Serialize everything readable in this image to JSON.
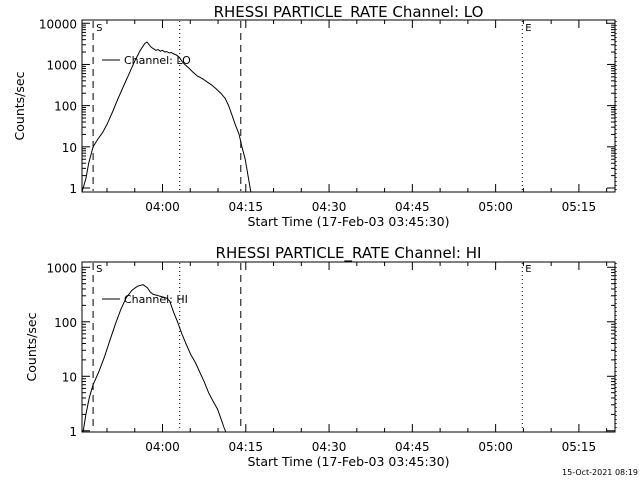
{
  "footer": {
    "timestamp": "15-Oct-2021 08:19"
  },
  "chart_data": [
    {
      "type": "line",
      "title": "RHESSI PARTICLE_RATE Channel: LO",
      "xlabel": "Start Time (17-Feb-03 03:45:30)",
      "ylabel": "Counts/sec",
      "xlim_min": [
        0,
        96
      ],
      "x_tick_labels": [
        "04:00",
        "04:15",
        "04:30",
        "04:45",
        "05:00",
        "05:15"
      ],
      "x_tick_values_min": [
        14.5,
        29.5,
        44.5,
        59.5,
        74.5,
        89.5
      ],
      "y_scale": "log",
      "ylim": [
        0.8,
        12000
      ],
      "y_tick_labels": [
        "1",
        "10",
        "100",
        "1000",
        "10000"
      ],
      "y_tick_values": [
        1,
        10,
        100,
        1000,
        10000
      ],
      "legend": {
        "label": "Channel: LO",
        "placement": "top-left"
      },
      "markers": [
        {
          "label": "S",
          "x_min": 2.0,
          "style": "dashed"
        },
        {
          "label": "",
          "x_min": 17.6,
          "style": "dotted"
        },
        {
          "label": "",
          "x_min": 28.6,
          "style": "dashed"
        },
        {
          "label": "E",
          "x_min": 79.3,
          "style": "dotted"
        },
        {
          "label": "",
          "x_min": 96.2,
          "style": "dotted"
        }
      ],
      "series": [
        {
          "name": "Channel: LO",
          "x_min": [
            0.0,
            0.7,
            1.2,
            2.0,
            2.8,
            3.7,
            4.5,
            5.5,
            6.5,
            7.5,
            8.5,
            9.5,
            10.5,
            11.3,
            11.7,
            12.1,
            12.5,
            12.9,
            13.3,
            13.7,
            14.1,
            14.5,
            14.9,
            15.3,
            15.7,
            16.1,
            16.5,
            17.0,
            17.5,
            18.0,
            18.5,
            19.3,
            20.0,
            20.8,
            21.7,
            22.5,
            23.3,
            24.1,
            25.0,
            25.8,
            26.4,
            27.0,
            27.6,
            28.3,
            28.8,
            29.4,
            29.9,
            30.4
          ],
          "y": [
            0.8,
            1.7,
            4,
            10,
            15,
            22,
            35,
            70,
            150,
            300,
            600,
            1200,
            2200,
            3200,
            3500,
            3000,
            2600,
            2400,
            2200,
            2300,
            2100,
            2200,
            2000,
            2050,
            1900,
            1950,
            1800,
            1700,
            1500,
            1200,
            1000,
            800,
            650,
            520,
            450,
            380,
            320,
            260,
            200,
            150,
            100,
            60,
            35,
            20,
            10,
            5,
            2,
            0.8
          ]
        }
      ]
    },
    {
      "type": "line",
      "title": "RHESSI PARTICLE_RATE Channel: HI",
      "xlabel": "Start Time (17-Feb-03 03:45:30)",
      "ylabel": "Counts/sec",
      "xlim_min": [
        0,
        96
      ],
      "x_tick_labels": [
        "04:00",
        "04:15",
        "04:30",
        "04:45",
        "05:00",
        "05:15"
      ],
      "x_tick_values_min": [
        14.5,
        29.5,
        44.5,
        59.5,
        74.5,
        89.5
      ],
      "y_scale": "log",
      "ylim": [
        0.95,
        1250
      ],
      "y_tick_labels": [
        "1",
        "10",
        "100",
        "1000"
      ],
      "y_tick_values": [
        1,
        10,
        100,
        1000
      ],
      "legend": {
        "label": "Channel: HI",
        "placement": "top-left"
      },
      "markers": [
        {
          "label": "S",
          "x_min": 2.0,
          "style": "dashed"
        },
        {
          "label": "",
          "x_min": 17.6,
          "style": "dotted"
        },
        {
          "label": "",
          "x_min": 28.6,
          "style": "dashed"
        },
        {
          "label": "E",
          "x_min": 79.3,
          "style": "dotted"
        },
        {
          "label": "",
          "x_min": 96.2,
          "style": "dotted"
        }
      ],
      "series": [
        {
          "name": "Channel: HI",
          "x_min": [
            0.2,
            0.7,
            1.3,
            2.0,
            3.0,
            4.0,
            5.0,
            6.0,
            7.0,
            8.0,
            9.0,
            10.0,
            11.0,
            11.8,
            12.3,
            12.8,
            13.3,
            13.8,
            14.3,
            14.8,
            15.3,
            15.8,
            16.5,
            17.2,
            18.0,
            18.8,
            19.6,
            20.4,
            21.2,
            22.0,
            22.8,
            23.6,
            24.4,
            25.0,
            25.5,
            25.9
          ],
          "y": [
            0.95,
            2,
            4,
            7,
            12,
            22,
            45,
            90,
            170,
            280,
            380,
            450,
            480,
            420,
            350,
            320,
            310,
            300,
            290,
            280,
            270,
            240,
            150,
            100,
            60,
            38,
            25,
            18,
            12,
            8,
            5,
            3.5,
            2.5,
            1.7,
            1.2,
            0.95
          ]
        }
      ]
    }
  ]
}
